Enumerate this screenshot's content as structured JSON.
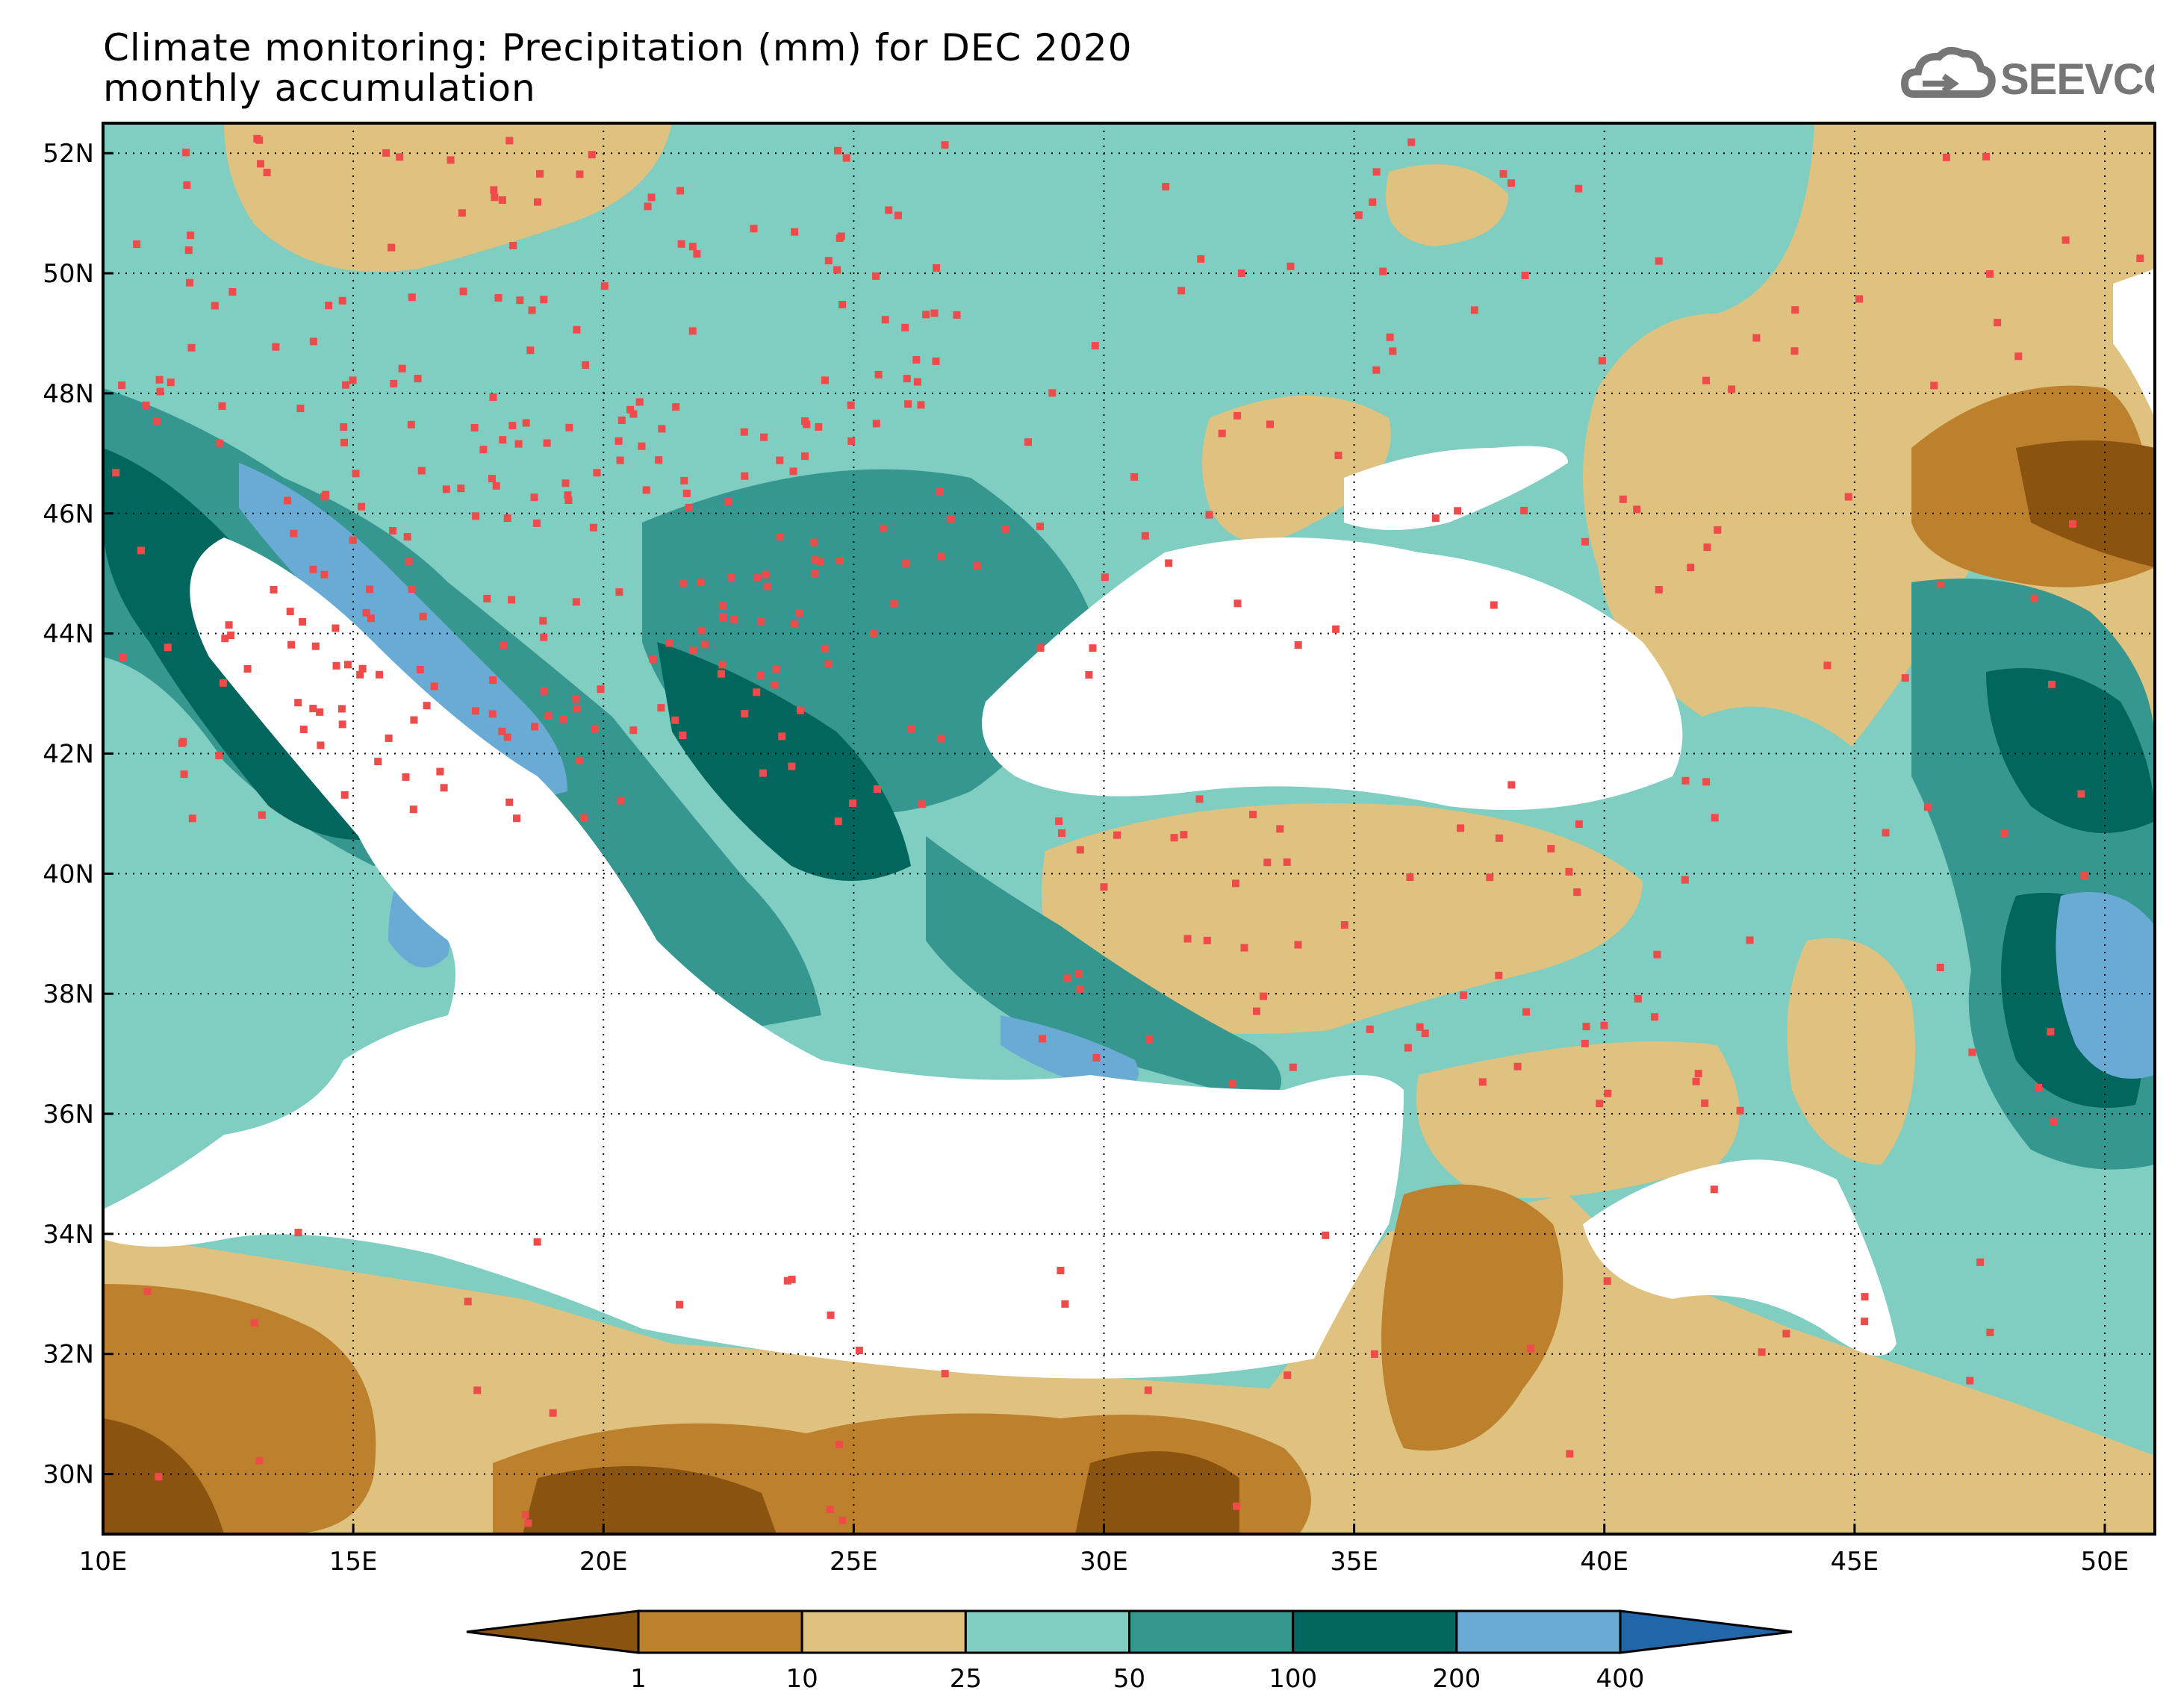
{
  "header": {
    "title_line1": "Climate monitoring: Precipitation (mm) for DEC 2020",
    "title_line2": "monthly accumulation"
  },
  "logo": {
    "text": "SEEVCCC",
    "icon": "cloud-icon"
  },
  "map": {
    "lon_range": [
      10,
      51
    ],
    "lat_range": [
      29,
      52.5
    ],
    "lat_ticks": [
      "52N",
      "50N",
      "48N",
      "46N",
      "44N",
      "42N",
      "40N",
      "38N",
      "36N",
      "34N",
      "32N",
      "30N"
    ],
    "lon_ticks": [
      "10E",
      "15E",
      "20E",
      "25E",
      "30E",
      "35E",
      "40E",
      "45E",
      "50E"
    ],
    "grid": "dotted",
    "station_marker_color": "#ef4b4b"
  },
  "colorbar": {
    "labels": [
      "1",
      "10",
      "25",
      "50",
      "100",
      "200",
      "400"
    ],
    "colors": [
      "#8a5310",
      "#bd812d",
      "#dfc27f",
      "#80cdc1",
      "#35978f",
      "#01665e",
      "#6aabd6",
      "#2066a8"
    ]
  }
}
